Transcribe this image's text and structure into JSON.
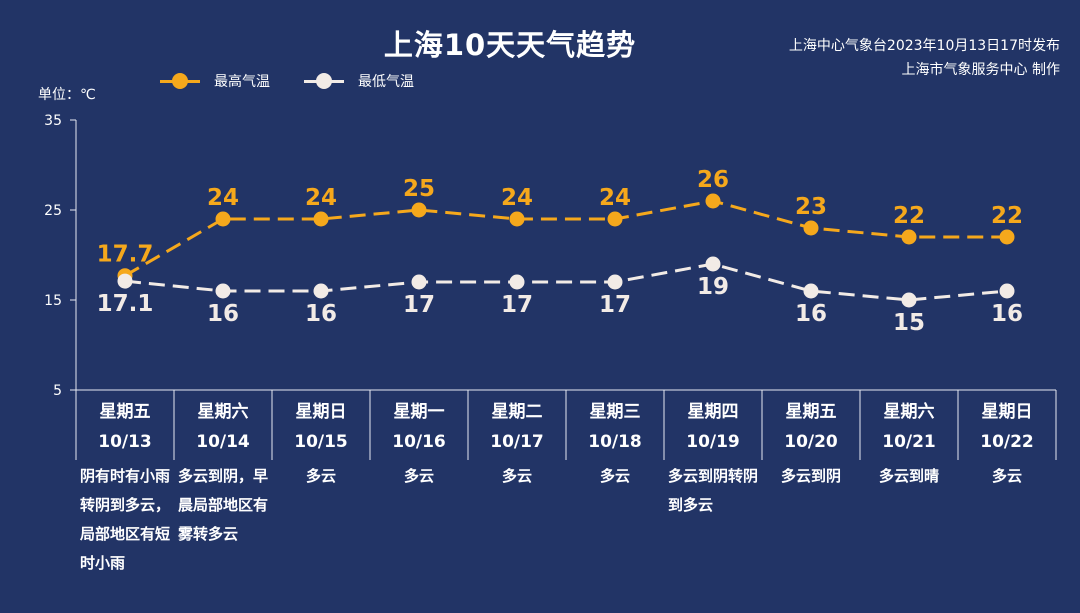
{
  "title": "上海10天天气趋势",
  "source_line1": "上海中心气象台2023年10月13日17时发布",
  "source_line2": "上海市气象服务中心 制作",
  "unit_label": "单位：℃",
  "colors": {
    "background": "#223466",
    "high": "#f5a81c",
    "low": "#f2ebe6",
    "axis": "#e6e9f2"
  },
  "chart_data": {
    "type": "line",
    "categories": [
      "10/13",
      "10/14",
      "10/15",
      "10/16",
      "10/17",
      "10/18",
      "10/19",
      "10/20",
      "10/21",
      "10/22"
    ],
    "weekdays": [
      "星期五",
      "星期六",
      "星期日",
      "星期一",
      "星期二",
      "星期三",
      "星期四",
      "星期五",
      "星期六",
      "星期日"
    ],
    "weather": [
      "阴有时有小雨转阴到多云，局部地区有短时小雨",
      "多云到阴，早晨局部地区有雾转多云",
      "多云",
      "多云",
      "多云",
      "多云",
      "多云到阴转阴到多云",
      "多云到阴",
      "多云到晴",
      "多云"
    ],
    "series": [
      {
        "name": "最高气温",
        "values": [
          17.7,
          24,
          24,
          25,
          24,
          24,
          26,
          23,
          22,
          22
        ],
        "labels": [
          "17.7",
          "24",
          "24",
          "25",
          "24",
          "24",
          "26",
          "23",
          "22",
          "22"
        ],
        "color": "#f5a81c"
      },
      {
        "name": "最低气温",
        "values": [
          17.1,
          16,
          16,
          17,
          17,
          17,
          19,
          16,
          15,
          16
        ],
        "labels": [
          "17.1",
          "16",
          "16",
          "17",
          "17",
          "17",
          "19",
          "16",
          "15",
          "16"
        ],
        "color": "#f2ebe6"
      }
    ],
    "yticks": [
      5,
      15,
      25,
      35
    ],
    "ytick_labels": [
      "5",
      "15",
      "25",
      "35"
    ],
    "ylim": [
      5,
      35
    ],
    "ylabel": "单位：℃",
    "legend_position": "top-left",
    "grid": false
  }
}
